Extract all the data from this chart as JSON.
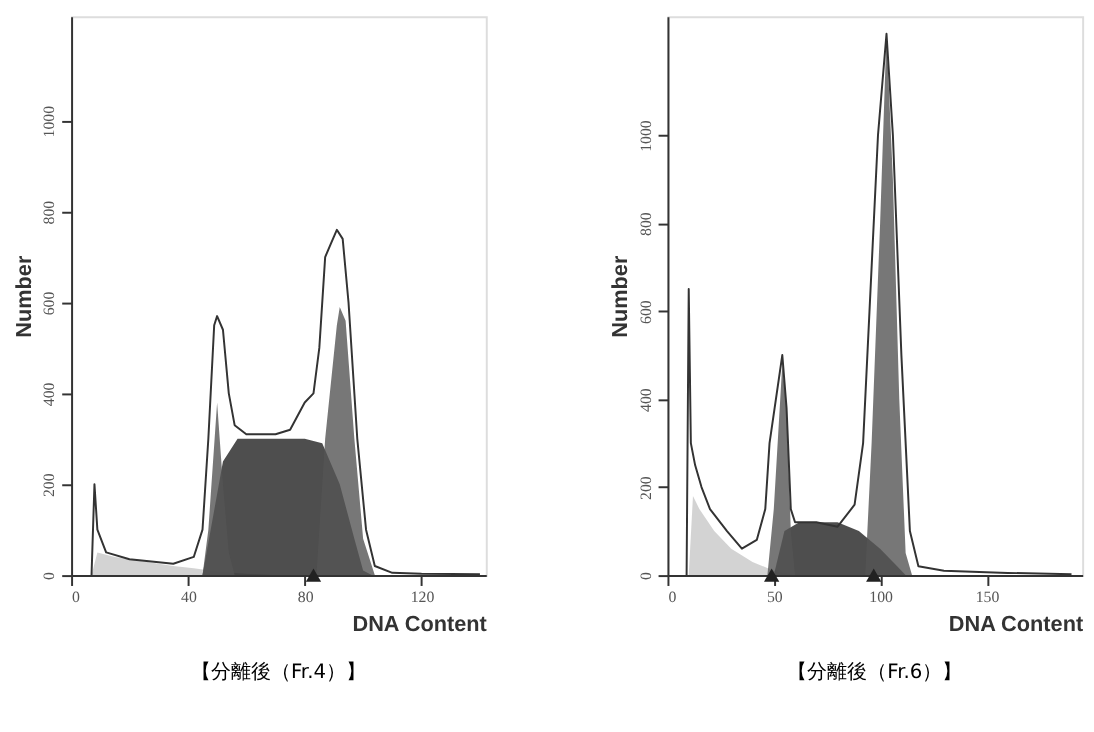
{
  "chart_data": [
    {
      "type": "area",
      "title": "【分離後（Fr.4）】",
      "xlabel": "DNA Content",
      "ylabel": "Number",
      "xlim": [
        0,
        142
      ],
      "ylim": [
        0,
        1230
      ],
      "xticks": [
        0,
        40,
        80,
        120
      ],
      "yticks": [
        0,
        200,
        400,
        600,
        800,
        1000
      ],
      "grid": false,
      "series": [
        {
          "color": "#c8c8c8",
          "x": [
            7,
            9,
            15,
            25,
            35,
            42,
            50,
            60,
            70
          ],
          "values": [
            0,
            50,
            40,
            30,
            20,
            15,
            8,
            3,
            0
          ]
        },
        {
          "type": "area",
          "color": "#222222",
          "x": [
            45,
            52,
            57,
            70,
            80,
            86,
            92,
            97,
            100,
            103
          ],
          "values": [
            0,
            250,
            300,
            300,
            300,
            290,
            200,
            80,
            10,
            0
          ]
        },
        {
          "type": "area",
          "color": "#555555",
          "x": [
            45,
            47,
            50,
            52,
            54,
            56
          ],
          "values": [
            0,
            100,
            380,
            200,
            50,
            0
          ]
        },
        {
          "type": "area",
          "color": "#555555",
          "x": [
            84,
            87,
            91,
            92,
            94,
            97,
            100,
            104
          ],
          "values": [
            0,
            300,
            550,
            590,
            560,
            300,
            80,
            0
          ]
        },
        {
          "type": "line",
          "color": "#333333",
          "line_style": "solid",
          "x": [
            7,
            8,
            9,
            12,
            20,
            35,
            42,
            45,
            47,
            49,
            50,
            52,
            54,
            56,
            60,
            70,
            75,
            80,
            83,
            85,
            87,
            89,
            91,
            93,
            95,
            98,
            101,
            104,
            110,
            120,
            140
          ],
          "values": [
            0,
            200,
            100,
            50,
            35,
            25,
            40,
            100,
            300,
            550,
            570,
            540,
            400,
            330,
            310,
            310,
            320,
            380,
            400,
            500,
            700,
            730,
            760,
            740,
            600,
            300,
            100,
            20,
            5,
            3,
            2
          ]
        },
        {
          "type": "scatter",
          "marker": "triangle",
          "color": "#222222",
          "x": [
            83
          ],
          "values": [
            0
          ]
        }
      ]
    },
    {
      "type": "area",
      "title": "【分離後（Fr.6）】",
      "xlabel": "DNA Content",
      "ylabel": "Number",
      "xlim": [
        0,
        195
      ],
      "ylim": [
        0,
        1270
      ],
      "xticks": [
        0,
        50,
        100,
        150
      ],
      "yticks": [
        0,
        200,
        400,
        600,
        800,
        1000
      ],
      "grid": false,
      "series": [
        {
          "color": "#c8c8c8",
          "x": [
            10,
            12,
            15,
            22,
            30,
            40,
            50,
            60
          ],
          "values": [
            0,
            180,
            150,
            100,
            60,
            30,
            10,
            0
          ]
        },
        {
          "type": "area",
          "color": "#222222",
          "x": [
            50,
            55,
            62,
            80,
            90,
            100,
            108,
            112
          ],
          "values": [
            0,
            100,
            120,
            120,
            100,
            60,
            20,
            0
          ]
        },
        {
          "type": "area",
          "color": "#555555",
          "x": [
            47,
            50,
            54,
            56,
            58,
            60
          ],
          "values": [
            0,
            150,
            480,
            380,
            100,
            0
          ]
        },
        {
          "type": "area",
          "color": "#555555",
          "x": [
            93,
            96,
            100,
            103,
            106,
            109,
            112,
            115
          ],
          "values": [
            0,
            300,
            800,
            1230,
            900,
            400,
            50,
            0
          ]
        },
        {
          "type": "line",
          "color": "#333333",
          "line_style": "solid",
          "x": [
            9,
            10,
            11,
            13,
            16,
            20,
            28,
            35,
            42,
            46,
            48,
            54,
            56,
            58,
            60,
            70,
            80,
            88,
            92,
            95,
            99,
            103,
            106,
            110,
            114,
            118,
            130,
            160,
            190
          ],
          "values": [
            0,
            650,
            300,
            250,
            200,
            150,
            100,
            60,
            80,
            150,
            300,
            500,
            380,
            150,
            120,
            120,
            110,
            160,
            300,
            600,
            1000,
            1230,
            1000,
            500,
            100,
            20,
            10,
            5,
            2
          ]
        },
        {
          "type": "scatter",
          "marker": "triangle",
          "color": "#222222",
          "x": [
            49,
            97
          ],
          "values": [
            0,
            0
          ]
        }
      ]
    }
  ]
}
